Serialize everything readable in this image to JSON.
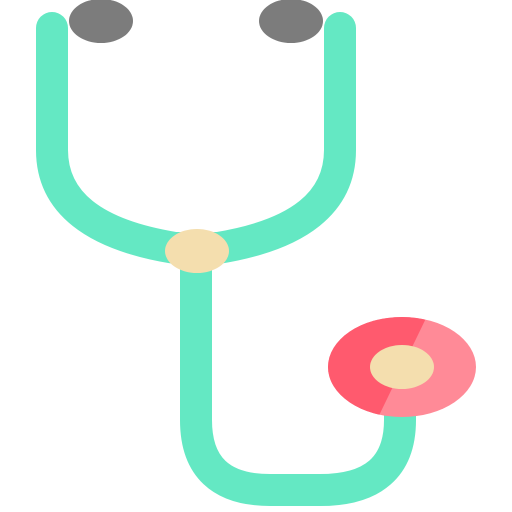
{
  "icon": {
    "name": "stethoscope-icon",
    "colors": {
      "tube": "#64E8C3",
      "earpiece": "#7C7C7C",
      "connector": "#F4DEAE",
      "chest_piece_left": "#FF5A6E",
      "chest_piece_right": "#FF8A97",
      "diaphragm_center": "#F4DEAE",
      "background": "#FFFFFF"
    }
  }
}
